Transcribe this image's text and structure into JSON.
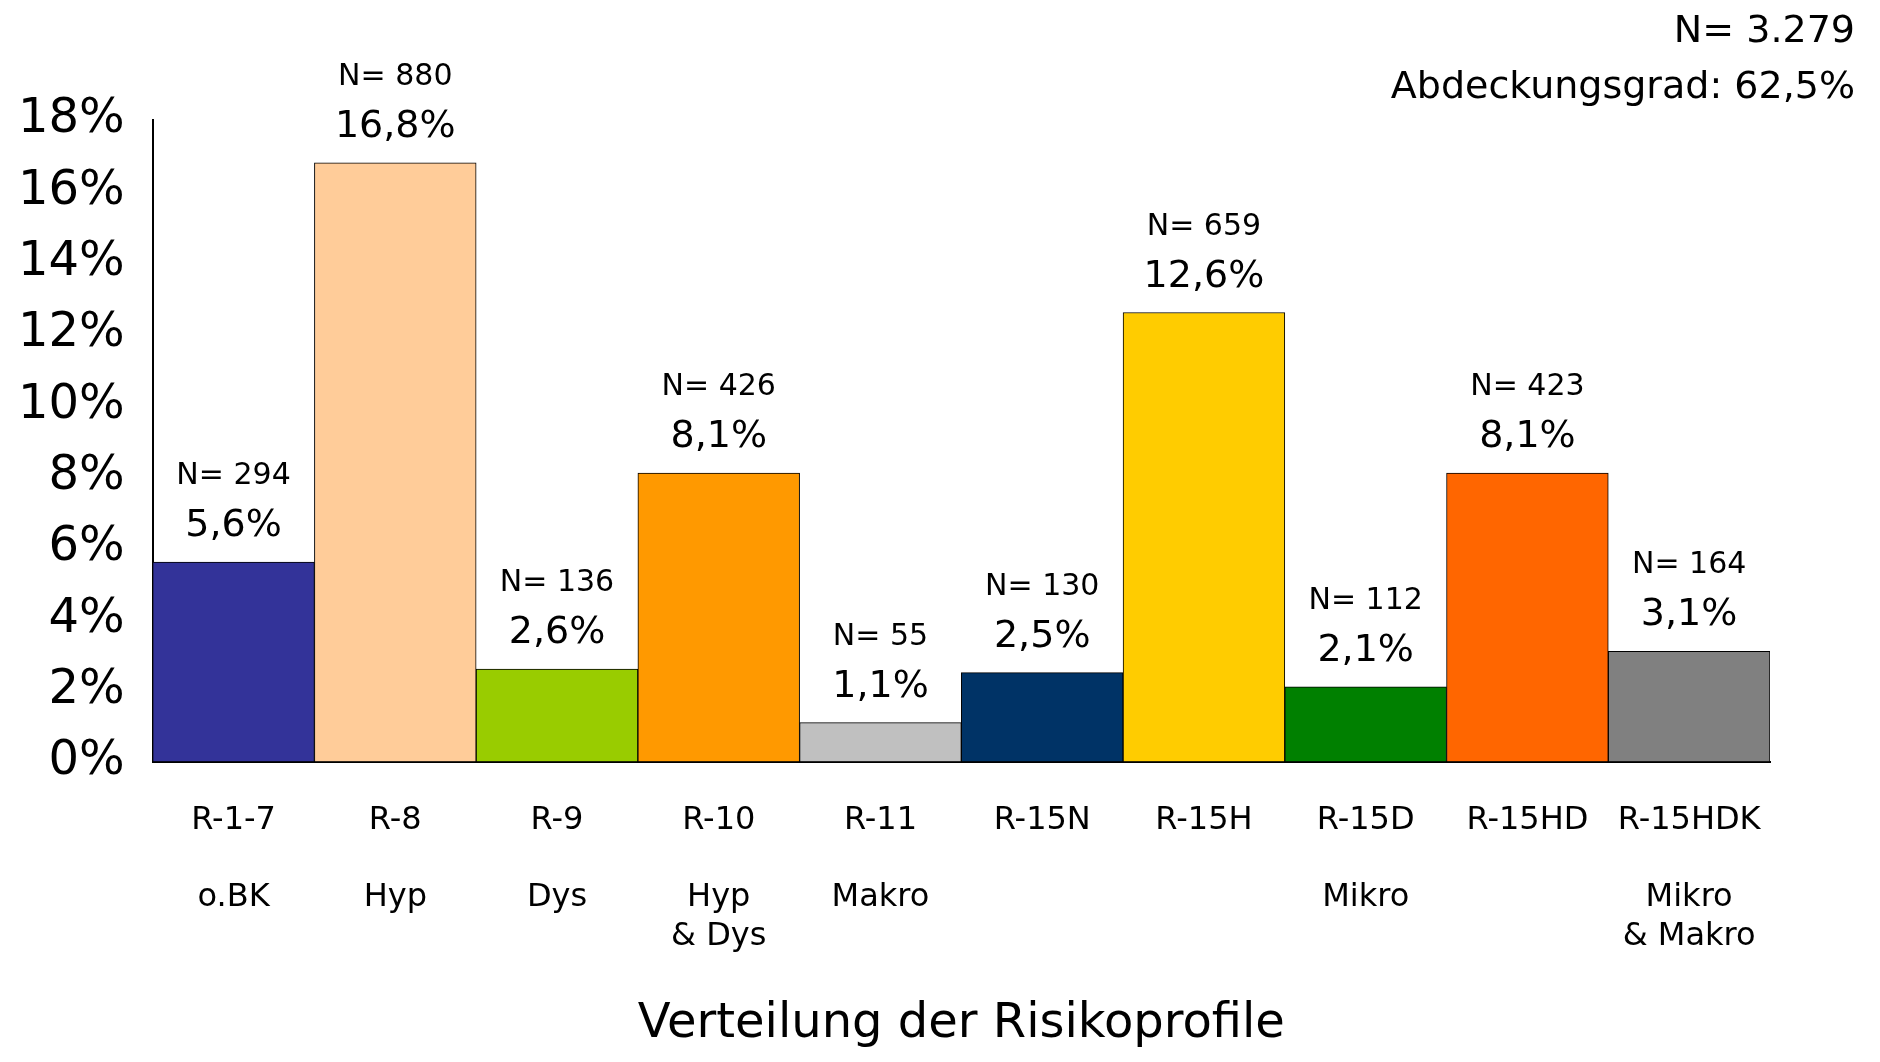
{
  "chart_data": {
    "type": "bar",
    "xlabel": "Verteilung der Risikoprofile",
    "categories": [
      "R-1-7\n\no.BK",
      "R-8\n\nHyp",
      "R-9\n\nDys",
      "R-10\n\nHyp\n& Dys",
      "R-11\n\nMakro",
      "R-15N",
      "R-15H",
      "R-15D\n\nMikro",
      "R-15HD",
      "R-15HDK\n\nMikro\n& Makro"
    ],
    "values": [
      5.6,
      16.8,
      2.6,
      8.1,
      1.1,
      2.5,
      12.6,
      2.1,
      8.1,
      3.1
    ],
    "colors": [
      "#333399",
      "#ffcc99",
      "#99cc00",
      "#ff9900",
      "#c0c0c0",
      "#003366",
      "#ffcc00",
      "#008000",
      "#ff6600",
      "#808080"
    ],
    "value_labels": [
      "N= 294\n5,6%",
      "N= 880\n16,8%",
      "N= 136\n2,6%",
      "N= 426\n8,1%",
      "N= 55\n1,1%",
      "N= 130\n2,5%",
      "N= 659\n12,6%",
      "N= 112\n2,1%",
      "N= 423\n8,1%",
      "N= 164\n3,1%"
    ],
    "ylim": [
      0,
      18
    ],
    "yticks": [
      {
        "value": 0,
        "label": "0%"
      },
      {
        "value": 2,
        "label": "2%"
      },
      {
        "value": 4,
        "label": "4%"
      },
      {
        "value": 6,
        "label": "6%"
      },
      {
        "value": 8,
        "label": "8%"
      },
      {
        "value": 10,
        "label": "10%"
      },
      {
        "value": 12,
        "label": "12%"
      },
      {
        "value": 14,
        "label": "14%"
      },
      {
        "value": 16,
        "label": "16%"
      },
      {
        "value": 18,
        "label": "18%"
      }
    ],
    "grid": false,
    "legend": false,
    "annotations": [
      "N= 3.279",
      "Abdeckungsgrad: 62,5%"
    ]
  }
}
